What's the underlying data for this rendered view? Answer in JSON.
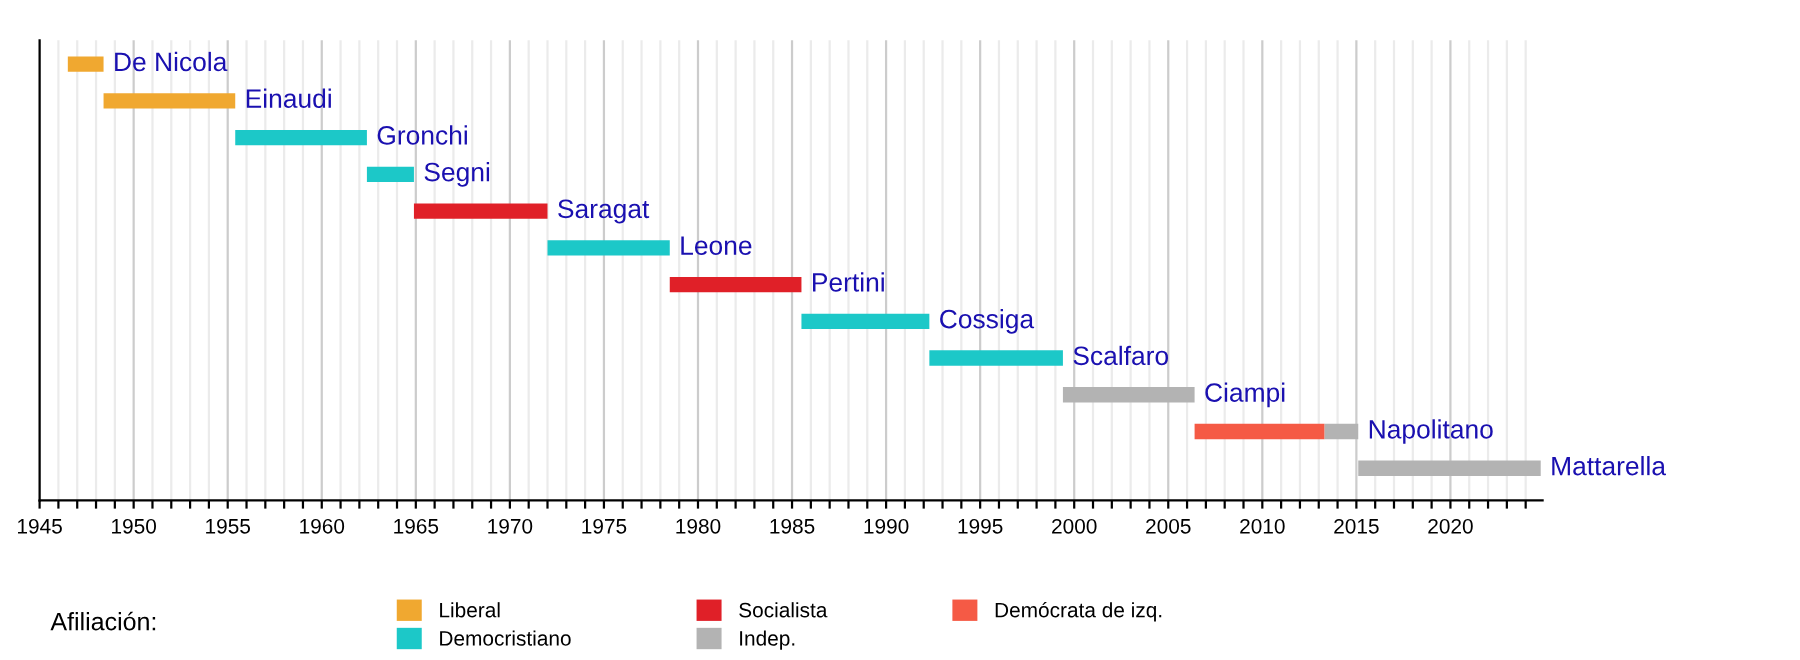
{
  "chart_data": {
    "type": "bar",
    "orientation": "horizontal",
    "categories": [
      "De Nicola",
      "Einaudi",
      "Gronchi",
      "Segni",
      "Saragat",
      "Leone",
      "Pertini",
      "Cossiga",
      "Scalfaro",
      "Ciampi",
      "Napolitano",
      "Mattarella"
    ],
    "series": [
      {
        "name": "Liberal",
        "color": "#f0a830",
        "base": [
          1946.5,
          1948.4,
          null,
          null,
          null,
          null,
          null,
          null,
          null,
          null,
          null,
          null
        ],
        "values": [
          1.9,
          7.0,
          null,
          null,
          null,
          null,
          null,
          null,
          null,
          null,
          null,
          null
        ]
      },
      {
        "name": "Democristiano",
        "color": "#1cc8c8",
        "base": [
          null,
          null,
          1955.4,
          1962.4,
          null,
          1972.0,
          null,
          1985.5,
          1992.3,
          null,
          null,
          null
        ],
        "values": [
          null,
          null,
          7.0,
          2.5,
          null,
          6.5,
          null,
          6.8,
          7.1,
          null,
          null,
          null
        ]
      },
      {
        "name": "Socialista",
        "color": "#e02028",
        "base": [
          null,
          null,
          null,
          null,
          1964.9,
          null,
          1978.5,
          null,
          null,
          null,
          null,
          null
        ],
        "values": [
          null,
          null,
          null,
          null,
          7.1,
          null,
          7.0,
          null,
          null,
          null,
          null,
          null
        ]
      },
      {
        "name": "Indep.",
        "color": "#b3b3b3",
        "base": [
          null,
          null,
          null,
          null,
          null,
          null,
          null,
          null,
          null,
          1999.4,
          2013.3,
          2015.1
        ],
        "values": [
          null,
          null,
          null,
          null,
          null,
          null,
          null,
          null,
          null,
          7.0,
          1.8,
          9.7
        ]
      },
      {
        "name": "Demócrata de izq.",
        "color": "#f55a45",
        "base": [
          null,
          null,
          null,
          null,
          null,
          null,
          null,
          null,
          null,
          null,
          2006.4,
          null
        ],
        "values": [
          null,
          null,
          null,
          null,
          null,
          null,
          null,
          null,
          null,
          null,
          6.9,
          null
        ]
      }
    ],
    "xlim": [
      1945,
      2024.9
    ],
    "xticks": [
      1945,
      {
        "value": 1946,
        "label": null
      },
      {
        "value": 1947,
        "label": null
      },
      {
        "value": 1948,
        "label": null
      },
      {
        "value": 1949,
        "label": null
      },
      1950,
      {
        "value": 1951,
        "label": null
      },
      {
        "value": 1952,
        "label": null
      },
      {
        "value": 1953,
        "label": null
      },
      {
        "value": 1954,
        "label": null
      },
      1955,
      {
        "value": 1956,
        "label": null
      },
      {
        "value": 1957,
        "label": null
      },
      {
        "value": 1958,
        "label": null
      },
      {
        "value": 1959,
        "label": null
      },
      1960,
      {
        "value": 1961,
        "label": null
      },
      {
        "value": 1962,
        "label": null
      },
      {
        "value": 1963,
        "label": null
      },
      {
        "value": 1964,
        "label": null
      },
      1965,
      {
        "value": 1966,
        "label": null
      },
      {
        "value": 1967,
        "label": null
      },
      {
        "value": 1968,
        "label": null
      },
      {
        "value": 1969,
        "label": null
      },
      1970,
      {
        "value": 1971,
        "label": null
      },
      {
        "value": 1972,
        "label": null
      },
      {
        "value": 1973,
        "label": null
      },
      {
        "value": 1974,
        "label": null
      },
      1975,
      {
        "value": 1976,
        "label": null
      },
      {
        "value": 1977,
        "label": null
      },
      {
        "value": 1978,
        "label": null
      },
      {
        "value": 1979,
        "label": null
      },
      1980,
      {
        "value": 1981,
        "label": null
      },
      {
        "value": 1982,
        "label": null
      },
      {
        "value": 1983,
        "label": null
      },
      {
        "value": 1984,
        "label": null
      },
      1985,
      {
        "value": 1986,
        "label": null
      },
      {
        "value": 1987,
        "label": null
      },
      {
        "value": 1988,
        "label": null
      },
      {
        "value": 1989,
        "label": null
      },
      1990,
      {
        "value": 1991,
        "label": null
      },
      {
        "value": 1992,
        "label": null
      },
      {
        "value": 1993,
        "label": null
      },
      {
        "value": 1994,
        "label": null
      },
      1995,
      {
        "value": 1996,
        "label": null
      },
      {
        "value": 1997,
        "label": null
      },
      {
        "value": 1998,
        "label": null
      },
      {
        "value": 1999,
        "label": null
      },
      2000,
      {
        "value": 2001,
        "label": null
      },
      {
        "value": 2002,
        "label": null
      },
      {
        "value": 2003,
        "label": null
      },
      {
        "value": 2004,
        "label": null
      },
      2005,
      {
        "value": 2006,
        "label": null
      },
      {
        "value": 2007,
        "label": null
      },
      {
        "value": 2008,
        "label": null
      },
      {
        "value": 2009,
        "label": null
      },
      2010,
      {
        "value": 2011,
        "label": null
      },
      {
        "value": 2012,
        "label": null
      },
      {
        "value": 2013,
        "label": null
      },
      {
        "value": 2014,
        "label": null
      },
      2015,
      {
        "value": 2016,
        "label": null
      },
      {
        "value": 2017,
        "label": null
      },
      {
        "value": 2018,
        "label": null
      },
      {
        "value": 2019,
        "label": null
      },
      2020,
      {
        "value": 2021,
        "label": null
      },
      {
        "value": 2022,
        "label": null
      },
      {
        "value": 2023,
        "label": null
      },
      {
        "value": 2024,
        "label": null
      }
    ],
    "grid": "x",
    "legend": "bottom",
    "legend_title": "Afiliación:",
    "tick_labels": "x"
  }
}
